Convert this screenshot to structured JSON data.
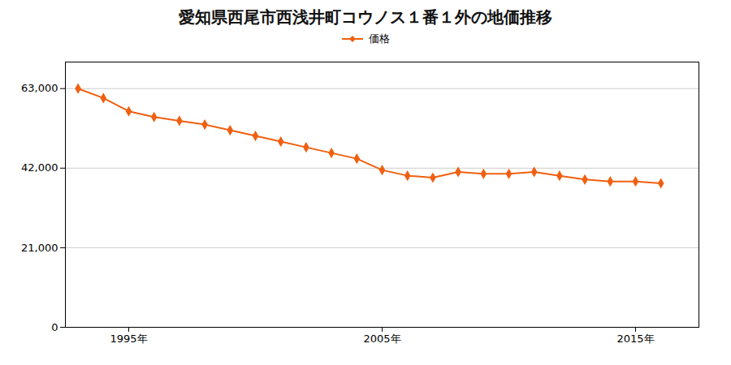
{
  "chart_data": {
    "type": "line",
    "title": "愛知県西尾市西浅井町コウノス１番１外の地価推移",
    "x": [
      1993,
      1994,
      1995,
      1996,
      1997,
      1998,
      1999,
      2000,
      2001,
      2002,
      2003,
      2004,
      2005,
      2006,
      2007,
      2008,
      2009,
      2010,
      2011,
      2012,
      2013,
      2014,
      2015,
      2016
    ],
    "series": [
      {
        "name": "価格",
        "color": "#f06010",
        "marker": "diamond",
        "values": [
          63000,
          60500,
          57000,
          55500,
          54500,
          53500,
          52000,
          50500,
          49000,
          47500,
          46000,
          44500,
          41500,
          40000,
          39500,
          41000,
          40500,
          40500,
          41000,
          40000,
          39000,
          38500,
          38500,
          38000
        ]
      }
    ],
    "xlim": [
      1992.5,
      2017.5
    ],
    "xticks": [
      {
        "value": 1995,
        "label": "1995年"
      },
      {
        "value": 2005,
        "label": "2005年"
      },
      {
        "value": 2015,
        "label": "2015年"
      }
    ],
    "ylim": [
      0,
      70000
    ],
    "yticks": [
      0,
      {
        "value": 21000,
        "label": "21,000"
      },
      {
        "value": 42000,
        "label": "42,000"
      },
      {
        "value": 63000,
        "label": "63,000"
      }
    ],
    "grid": true,
    "legend": "top"
  }
}
